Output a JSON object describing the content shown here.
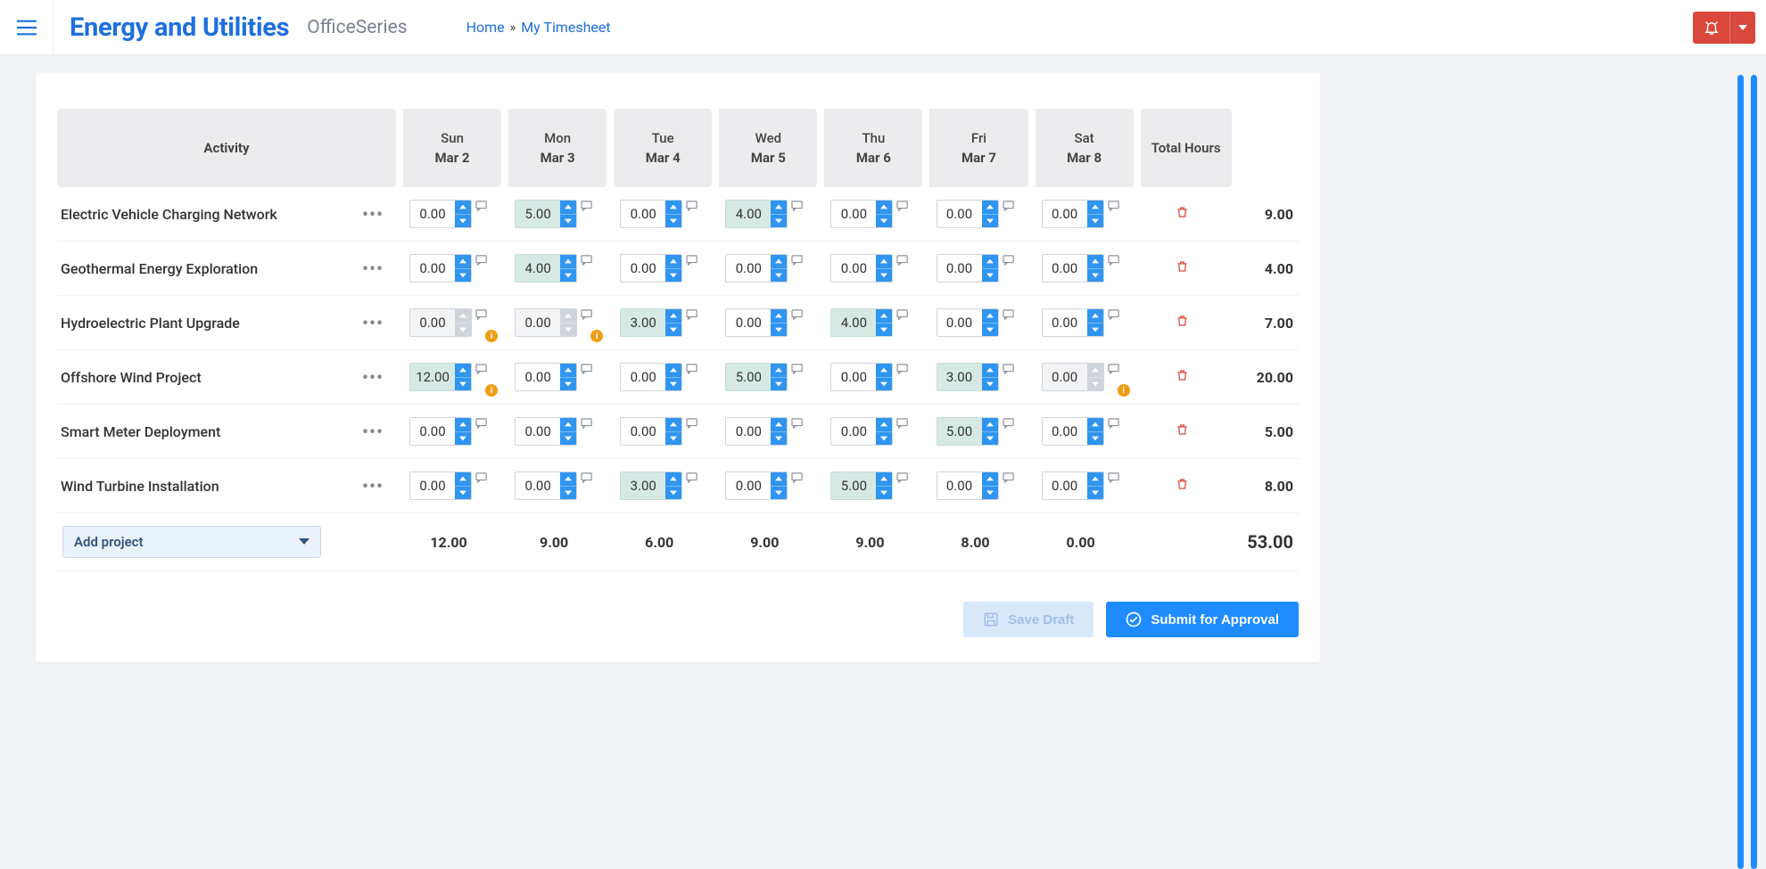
{
  "header": {
    "brand": "Energy and Utilities",
    "subbrand": "OfficeSeries",
    "breadcrumbs": {
      "home": "Home",
      "current": "My Timesheet"
    }
  },
  "columns": {
    "activity": "Activity",
    "days": [
      {
        "dow": "Sun",
        "date": "Mar 2"
      },
      {
        "dow": "Mon",
        "date": "Mar 3"
      },
      {
        "dow": "Tue",
        "date": "Mar 4"
      },
      {
        "dow": "Wed",
        "date": "Mar 5"
      },
      {
        "dow": "Thu",
        "date": "Mar 6"
      },
      {
        "dow": "Fri",
        "date": "Mar 7"
      },
      {
        "dow": "Sat",
        "date": "Mar 8"
      }
    ],
    "total": "Total Hours"
  },
  "rows": [
    {
      "name": "Electric Vehicle Charging Network",
      "cells": [
        {
          "value": "0.00"
        },
        {
          "value": "5.00",
          "filled": true
        },
        {
          "value": "0.00"
        },
        {
          "value": "4.00",
          "filled": true
        },
        {
          "value": "0.00"
        },
        {
          "value": "0.00"
        },
        {
          "value": "0.00"
        }
      ],
      "total": "9.00"
    },
    {
      "name": "Geothermal Energy Exploration",
      "cells": [
        {
          "value": "0.00"
        },
        {
          "value": "4.00",
          "filled": true
        },
        {
          "value": "0.00"
        },
        {
          "value": "0.00"
        },
        {
          "value": "0.00"
        },
        {
          "value": "0.00"
        },
        {
          "value": "0.00"
        }
      ],
      "total": "4.00"
    },
    {
      "name": "Hydroelectric Plant Upgrade",
      "cells": [
        {
          "value": "0.00",
          "disabled": true,
          "info": true
        },
        {
          "value": "0.00",
          "disabled": true,
          "info": true
        },
        {
          "value": "3.00",
          "filled": true
        },
        {
          "value": "0.00"
        },
        {
          "value": "4.00",
          "filled": true
        },
        {
          "value": "0.00"
        },
        {
          "value": "0.00"
        }
      ],
      "total": "7.00"
    },
    {
      "name": "Offshore Wind Project",
      "cells": [
        {
          "value": "12.00",
          "filled": true,
          "info": true
        },
        {
          "value": "0.00"
        },
        {
          "value": "0.00"
        },
        {
          "value": "5.00",
          "filled": true
        },
        {
          "value": "0.00"
        },
        {
          "value": "3.00",
          "filled": true
        },
        {
          "value": "0.00",
          "disabled": true,
          "info": true
        }
      ],
      "total": "20.00"
    },
    {
      "name": "Smart Meter Deployment",
      "cells": [
        {
          "value": "0.00"
        },
        {
          "value": "0.00"
        },
        {
          "value": "0.00"
        },
        {
          "value": "0.00"
        },
        {
          "value": "0.00"
        },
        {
          "value": "5.00",
          "filled": true
        },
        {
          "value": "0.00"
        }
      ],
      "total": "5.00"
    },
    {
      "name": "Wind Turbine Installation",
      "cells": [
        {
          "value": "0.00"
        },
        {
          "value": "0.00"
        },
        {
          "value": "3.00",
          "filled": true
        },
        {
          "value": "0.00"
        },
        {
          "value": "5.00",
          "filled": true
        },
        {
          "value": "0.00"
        },
        {
          "value": "0.00"
        }
      ],
      "total": "8.00"
    }
  ],
  "totals": {
    "label": "Add project",
    "perDay": [
      "12.00",
      "9.00",
      "6.00",
      "9.00",
      "9.00",
      "8.00",
      "0.00"
    ],
    "grand": "53.00"
  },
  "buttons": {
    "save": "Save Draft",
    "submit": "Submit for Approval"
  },
  "colors": {
    "brand": "#1e6fe0",
    "accent": "#1e8cff",
    "danger": "#d9483b",
    "filledCell": "#d7e9e5",
    "headerBg": "#ececee",
    "warn": "#f39c12"
  }
}
